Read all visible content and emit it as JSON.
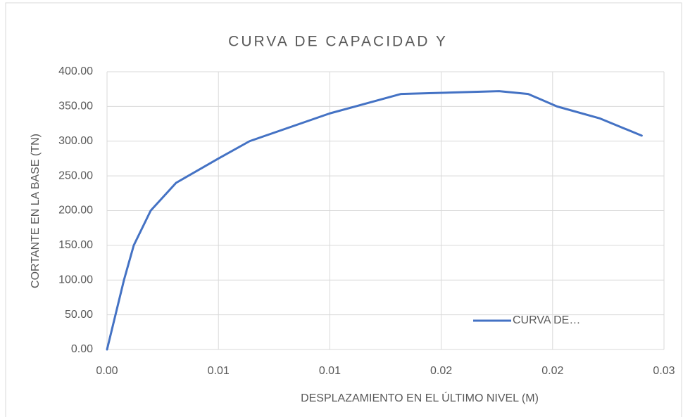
{
  "chart_data": {
    "type": "line",
    "title": "CURVA DE CAPACIDAD Y",
    "x_label": "DESPLAZAMIENTO EN EL ÚLTIMO NIVEL (M)",
    "y_label": "CORTANTE EN LA BASE (TN)",
    "x": [
      0,
      0.00076,
      0.0012,
      0.00196,
      0.0031,
      0.005,
      0.0064,
      0.01,
      0.0132,
      0.0154,
      0.0176,
      0.0189,
      0.0202,
      0.0221,
      0.024
    ],
    "series": [
      {
        "name": "CURVA DE…",
        "color": "#4472c4",
        "values": [
          0,
          100,
          150,
          200,
          240,
          275,
          300,
          340,
          368,
          370,
          372,
          368,
          350,
          333,
          308
        ]
      }
    ],
    "xlim": [
      0,
      0.025
    ],
    "ylim": [
      0,
      400
    ],
    "xticks": [
      {
        "value": 0,
        "label": "0.00"
      },
      {
        "value": 0.005,
        "label": "0.01"
      },
      {
        "value": 0.01,
        "label": "0.01"
      },
      {
        "value": 0.015,
        "label": "0.02"
      },
      {
        "value": 0.02,
        "label": "0.02"
      },
      {
        "value": 0.025,
        "label": "0.03"
      }
    ],
    "yticks": [
      {
        "value": 0,
        "label": "0.00"
      },
      {
        "value": 50,
        "label": "50.00"
      },
      {
        "value": 100,
        "label": "100.00"
      },
      {
        "value": 150,
        "label": "150.00"
      },
      {
        "value": 200,
        "label": "200.00"
      },
      {
        "value": 250,
        "label": "250.00"
      },
      {
        "value": 300,
        "label": "300.00"
      },
      {
        "value": 350,
        "label": "350.00"
      },
      {
        "value": 400,
        "label": "400.00"
      }
    ],
    "grid": true,
    "legend": "inside-bottom-right"
  }
}
